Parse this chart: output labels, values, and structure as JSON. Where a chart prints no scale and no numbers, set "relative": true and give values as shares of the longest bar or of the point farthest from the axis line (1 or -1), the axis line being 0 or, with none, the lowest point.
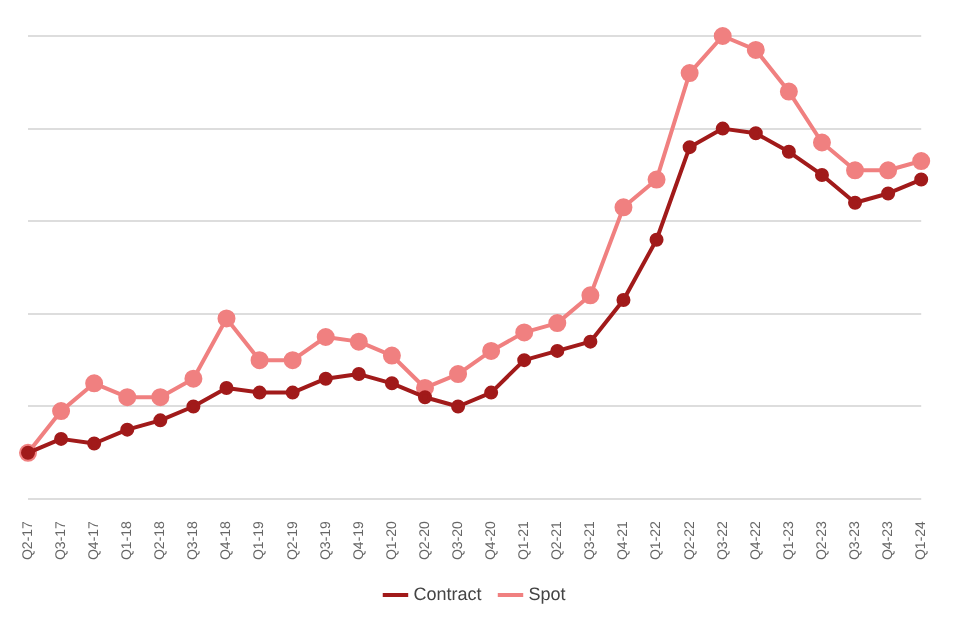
{
  "chart_data": {
    "type": "line",
    "relative": true,
    "grid": "y",
    "legend": "bottom",
    "marker": "circle",
    "line_style": "solid",
    "categories": [
      "Q2-17",
      "Q3-17",
      "Q4-17",
      "Q1-18",
      "Q2-18",
      "Q3-18",
      "Q4-18",
      "Q1-19",
      "Q2-19",
      "Q3-19",
      "Q4-19",
      "Q1-20",
      "Q2-20",
      "Q3-20",
      "Q4-20",
      "Q1-21",
      "Q2-21",
      "Q3-21",
      "Q4-21",
      "Q1-22",
      "Q2-22",
      "Q3-22",
      "Q4-22",
      "Q1-23",
      "Q2-23",
      "Q3-23",
      "Q4-23",
      "Q1-24"
    ],
    "series": [
      {
        "name": "Contract",
        "color": "#a11a1a",
        "values": [
          0.1,
          0.13,
          0.12,
          0.15,
          0.17,
          0.2,
          0.24,
          0.23,
          0.23,
          0.26,
          0.27,
          0.25,
          0.22,
          0.2,
          0.23,
          0.3,
          0.32,
          0.34,
          0.43,
          0.56,
          0.76,
          0.8,
          0.79,
          0.75,
          0.7,
          0.64,
          0.66,
          0.69
        ]
      },
      {
        "name": "Spot",
        "color": "#f08080",
        "values": [
          0.1,
          0.19,
          0.25,
          0.22,
          0.22,
          0.26,
          0.39,
          0.3,
          0.3,
          0.35,
          0.34,
          0.31,
          0.24,
          0.27,
          0.32,
          0.36,
          0.38,
          0.44,
          0.63,
          0.69,
          0.92,
          1,
          0.97,
          0.88,
          0.77,
          0.71,
          0.71,
          0.73
        ]
      }
    ]
  }
}
